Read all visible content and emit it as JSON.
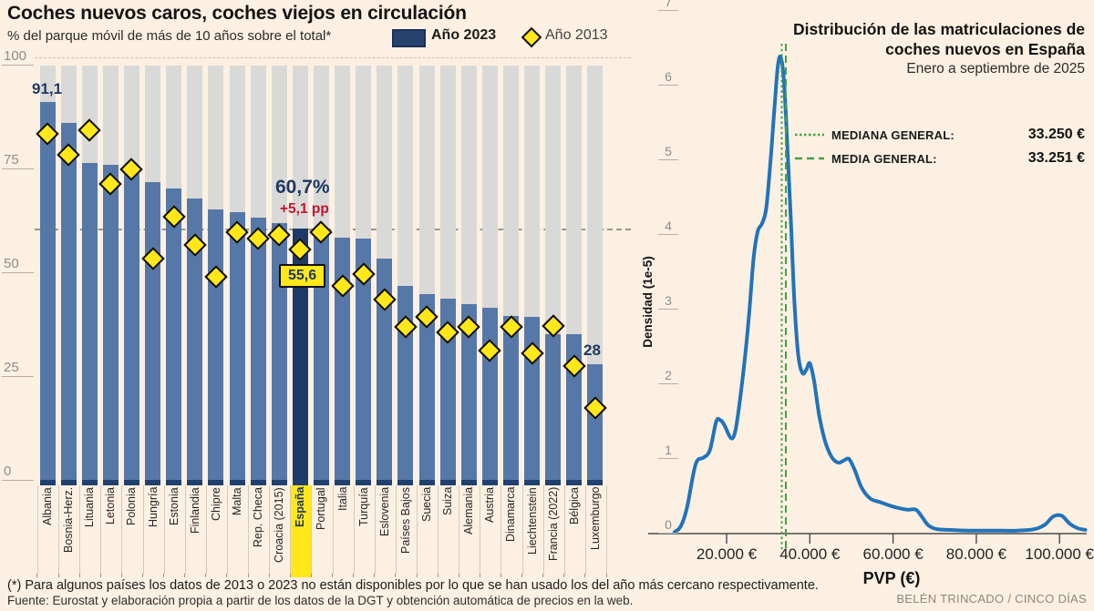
{
  "header": {
    "title": "Coches nuevos caros, coches viejos en circulación",
    "subtitle": "% del parque móvil de más de 10 años sobre el total*",
    "legend": [
      {
        "label": "Año 2023",
        "swatch": "navy-square"
      },
      {
        "label": "Año 2013",
        "swatch": "yellow-diamond"
      }
    ]
  },
  "colors": {
    "background": "#fcf0e3",
    "bar_2023": "#5678a8",
    "bar_espana": "#1e3a68",
    "bar_track": "#d9dad7",
    "bar_base_cap": "#20406e",
    "diamond_2013": "#ffe71a",
    "navy_text": "#1f3864",
    "red_text": "#c11230",
    "density_curve": "#2273b8",
    "median_green": "#3fa244",
    "highlight_yellow": "#ffe71a"
  },
  "chart_data": [
    {
      "type": "bar",
      "title": "% del parque móvil de más de 10 años sobre el total",
      "ylim": [
        0,
        100
      ],
      "yticks": [
        0,
        25,
        50,
        75,
        100
      ],
      "grid": "off",
      "reference_line": 60.7,
      "highlight_category": "España",
      "categories": [
        "Albania",
        "Bosnia-Herz.",
        "Lituania",
        "Letonia",
        "Polonia",
        "Hungría",
        "Estonia",
        "Finlandia",
        "Chipre",
        "Malta",
        "Rep. Checa",
        "Croacia (2015)",
        "España",
        "Portugal",
        "Italia",
        "Turquía",
        "Eslovenia",
        "Países Bajos",
        "Suecia",
        "Suiza",
        "Alemania",
        "Austria",
        "Dinamarca",
        "Liechtenstein",
        "Francia (2022)",
        "Bélgica",
        "Luxemburgo"
      ],
      "series": [
        {
          "name": "Año 2023",
          "marker": "bar",
          "values": [
            91.1,
            86.1,
            76.4,
            76.1,
            73.8,
            71.8,
            70.3,
            67.9,
            65.3,
            64.6,
            63.3,
            62.0,
            60.7,
            58.9,
            58.5,
            58.3,
            53.5,
            46.9,
            45.0,
            43.9,
            42.6,
            41.7,
            39.7,
            39.5,
            35.2,
            35.2,
            28.0
          ]
        },
        {
          "name": "Año 2013",
          "marker": "diamond",
          "values": [
            83.4,
            78.4,
            84.3,
            71.4,
            74.9,
            53.4,
            63.5,
            56.7,
            49.1,
            59.7,
            58.3,
            59.2,
            55.6,
            59.8,
            46.9,
            49.8,
            43.7,
            37.1,
            39.5,
            35.8,
            37.1,
            31.4,
            37.1,
            30.6,
            37.3,
            27.7,
            17.5
          ]
        }
      ],
      "annotations": {
        "albania_value": "91,1",
        "espana_value": "60,7%",
        "espana_change": "+5,1 pp",
        "espana_2013_value": "55,6",
        "luxemburgo_value": "28"
      }
    },
    {
      "type": "line",
      "title": "Distribución de las matriculaciones de coches nuevos en España",
      "subtitle": "Enero a septiembre de 2025",
      "xlabel": "PVP (€)",
      "ylabel": "Densidad (1e-5)",
      "ylim": [
        0,
        7
      ],
      "yticks": [
        0,
        1,
        2,
        3,
        4,
        5,
        6,
        7
      ],
      "xticks": [
        {
          "value": 20000,
          "label": "20.000 €"
        },
        {
          "value": 40000,
          "label": "40.000 €"
        },
        {
          "value": 60000,
          "label": "60.000 €"
        },
        {
          "value": 80000,
          "label": "80.000 €"
        },
        {
          "value": 100000,
          "label": "100.000 €"
        }
      ],
      "legend": [
        {
          "label": "MEDIANA GENERAL:",
          "value": "33.250 €",
          "value_num": 33250,
          "style": "dotted"
        },
        {
          "label": "MEDIA GENERAL:",
          "value": "33.251 €",
          "value_num": 33251,
          "style": "dashed"
        }
      ],
      "points": [
        [
          7500,
          0.02
        ],
        [
          9000,
          0.1
        ],
        [
          10500,
          0.35
        ],
        [
          12000,
          0.8
        ],
        [
          13000,
          0.98
        ],
        [
          14500,
          1.02
        ],
        [
          16000,
          1.12
        ],
        [
          17500,
          1.5
        ],
        [
          18500,
          1.52
        ],
        [
          19500,
          1.45
        ],
        [
          21000,
          1.28
        ],
        [
          22000,
          1.35
        ],
        [
          23000,
          1.7
        ],
        [
          24500,
          2.4
        ],
        [
          25500,
          3.0
        ],
        [
          26500,
          3.7
        ],
        [
          27500,
          4.05
        ],
        [
          28500,
          4.15
        ],
        [
          29500,
          4.35
        ],
        [
          30500,
          4.95
        ],
        [
          31500,
          5.7
        ],
        [
          32300,
          6.25
        ],
        [
          33000,
          6.38
        ],
        [
          33800,
          6.05
        ],
        [
          34600,
          5.2
        ],
        [
          35400,
          4.25
        ],
        [
          36300,
          3.1
        ],
        [
          37200,
          2.4
        ],
        [
          38200,
          2.15
        ],
        [
          39200,
          2.2
        ],
        [
          40000,
          2.28
        ],
        [
          41000,
          2.05
        ],
        [
          42200,
          1.6
        ],
        [
          43600,
          1.25
        ],
        [
          45200,
          1.03
        ],
        [
          46800,
          0.95
        ],
        [
          48200,
          0.98
        ],
        [
          49400,
          1.0
        ],
        [
          50800,
          0.85
        ],
        [
          52400,
          0.62
        ],
        [
          54500,
          0.47
        ],
        [
          57000,
          0.42
        ],
        [
          59500,
          0.37
        ],
        [
          61500,
          0.34
        ],
        [
          63500,
          0.32
        ],
        [
          65500,
          0.32
        ],
        [
          67000,
          0.22
        ],
        [
          68500,
          0.11
        ],
        [
          70500,
          0.06
        ],
        [
          73500,
          0.05
        ],
        [
          78000,
          0.04
        ],
        [
          84000,
          0.04
        ],
        [
          90000,
          0.04
        ],
        [
          94000,
          0.06
        ],
        [
          96500,
          0.12
        ],
        [
          98500,
          0.23
        ],
        [
          100500,
          0.24
        ],
        [
          102500,
          0.13
        ],
        [
          104500,
          0.07
        ],
        [
          106200,
          0.05
        ]
      ]
    }
  ],
  "footer": {
    "note": "(*) Para algunos países los datos de 2013 o 2023 no están disponibles por lo que se han usado los del año más cercano respectivamente.",
    "source": "Fuente: Eurostat y elaboración propia a partir de los datos de la DGT y obtención automática de precios en la web.",
    "credit": "BELÉN TRINCADO / CINCO DÍAS"
  }
}
